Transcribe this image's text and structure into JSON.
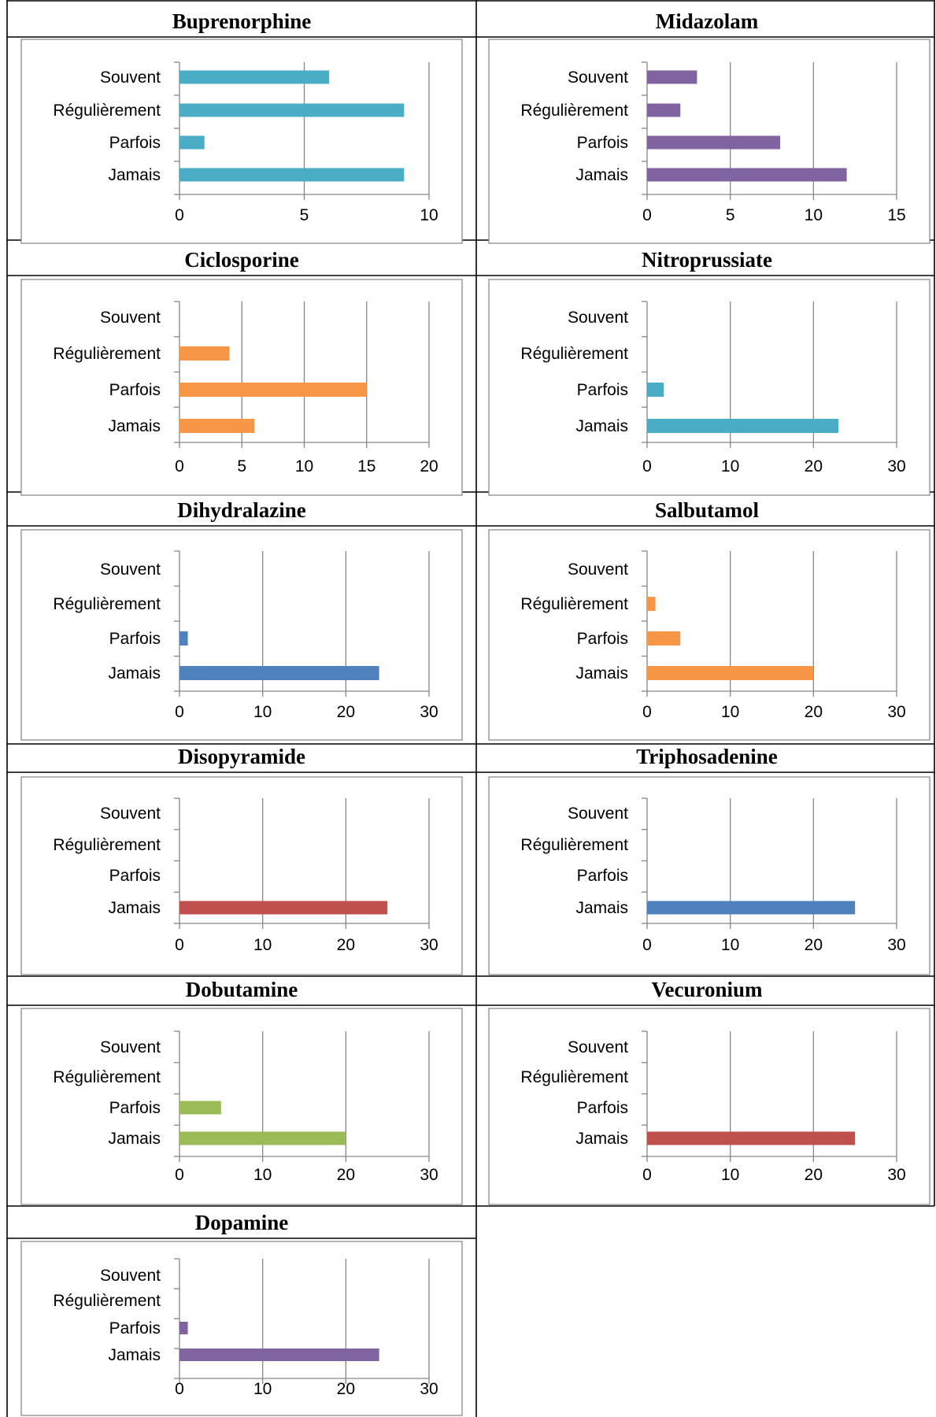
{
  "chart_data": [
    {
      "type": "bar",
      "orientation": "horizontal",
      "title": "Buprenorphine",
      "categories": [
        "Jamais",
        "Parfois",
        "Régulièrement",
        "Souvent"
      ],
      "values": [
        9,
        1,
        9,
        6
      ],
      "xlim": [
        0,
        10
      ],
      "xticks": [
        0,
        5,
        10
      ],
      "color": "#4BACC6",
      "grid": true,
      "legend": "none"
    },
    {
      "type": "bar",
      "orientation": "horizontal",
      "title": "Midazolam",
      "categories": [
        "Jamais",
        "Parfois",
        "Régulièrement",
        "Souvent"
      ],
      "values": [
        12,
        8,
        2,
        3
      ],
      "xlim": [
        0,
        15
      ],
      "xticks": [
        0,
        5,
        10,
        15
      ],
      "color": "#8064A2",
      "grid": true,
      "legend": "none"
    },
    {
      "type": "bar",
      "orientation": "horizontal",
      "title": "Ciclosporine",
      "categories": [
        "Jamais",
        "Parfois",
        "Régulièrement",
        "Souvent"
      ],
      "values": [
        6,
        15,
        4,
        0
      ],
      "xlim": [
        0,
        20
      ],
      "xticks": [
        0,
        5,
        10,
        15,
        20
      ],
      "color": "#F79646",
      "grid": true,
      "legend": "none"
    },
    {
      "type": "bar",
      "orientation": "horizontal",
      "title": "Nitroprussiate",
      "categories": [
        "Jamais",
        "Parfois",
        "Régulièrement",
        "Souvent"
      ],
      "values": [
        23,
        2,
        0,
        0
      ],
      "xlim": [
        0,
        30
      ],
      "xticks": [
        0,
        10,
        20,
        30
      ],
      "color": "#4BACC6",
      "grid": true,
      "legend": "none"
    },
    {
      "type": "bar",
      "orientation": "horizontal",
      "title": "Dihydralazine",
      "categories": [
        "Jamais",
        "Parfois",
        "Régulièrement",
        "Souvent"
      ],
      "values": [
        24,
        1,
        0,
        0
      ],
      "xlim": [
        0,
        30
      ],
      "xticks": [
        0,
        10,
        20,
        30
      ],
      "color": "#4F81BD",
      "grid": true,
      "legend": "none"
    },
    {
      "type": "bar",
      "orientation": "horizontal",
      "title": "Salbutamol",
      "categories": [
        "Jamais",
        "Parfois",
        "Régulièrement",
        "Souvent"
      ],
      "values": [
        20,
        4,
        1,
        0
      ],
      "xlim": [
        0,
        30
      ],
      "xticks": [
        0,
        10,
        20,
        30
      ],
      "color": "#F79646",
      "grid": true,
      "legend": "none"
    },
    {
      "type": "bar",
      "orientation": "horizontal",
      "title": "Disopyramide",
      "categories": [
        "Jamais",
        "Parfois",
        "Régulièrement",
        "Souvent"
      ],
      "values": [
        25,
        0,
        0,
        0
      ],
      "xlim": [
        0,
        30
      ],
      "xticks": [
        0,
        10,
        20,
        30
      ],
      "color": "#C0504D",
      "grid": true,
      "legend": "none"
    },
    {
      "type": "bar",
      "orientation": "horizontal",
      "title": "Triphosadenine",
      "categories": [
        "Jamais",
        "Parfois",
        "Régulièrement",
        "Souvent"
      ],
      "values": [
        25,
        0,
        0,
        0
      ],
      "xlim": [
        0,
        30
      ],
      "xticks": [
        0,
        10,
        20,
        30
      ],
      "color": "#4F81BD",
      "grid": true,
      "legend": "none"
    },
    {
      "type": "bar",
      "orientation": "horizontal",
      "title": "Dobutamine",
      "categories": [
        "Jamais",
        "Parfois",
        "Régulièrement",
        "Souvent"
      ],
      "values": [
        20,
        5,
        0,
        0
      ],
      "xlim": [
        0,
        30
      ],
      "xticks": [
        0,
        10,
        20,
        30
      ],
      "color": "#9BBB59",
      "grid": true,
      "legend": "none"
    },
    {
      "type": "bar",
      "orientation": "horizontal",
      "title": "Vecuronium",
      "categories": [
        "Jamais",
        "Parfois",
        "Régulièrement",
        "Souvent"
      ],
      "values": [
        25,
        0,
        0,
        0
      ],
      "xlim": [
        0,
        30
      ],
      "xticks": [
        0,
        10,
        20,
        30
      ],
      "color": "#C0504D",
      "grid": true,
      "legend": "none"
    },
    {
      "type": "bar",
      "orientation": "horizontal",
      "title": "Dopamine",
      "categories": [
        "Jamais",
        "Parfois",
        "Régulièrement",
        "Souvent"
      ],
      "values": [
        24,
        1,
        0,
        0
      ],
      "xlim": [
        0,
        30
      ],
      "xticks": [
        0,
        10,
        20,
        30
      ],
      "color": "#8064A2",
      "grid": true,
      "legend": "none"
    }
  ]
}
